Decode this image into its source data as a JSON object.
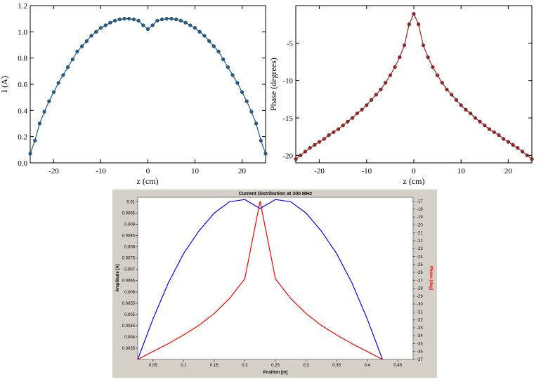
{
  "chart_data": [
    {
      "type": "line",
      "title": "",
      "xlabel": "z (cm)",
      "ylabel": "I (A)",
      "xlim": [
        -25,
        25
      ],
      "ylim": [
        0,
        1.2
      ],
      "x_ticks": [
        "-20",
        "-10",
        "0",
        "10",
        "20"
      ],
      "y_ticks": [
        "0.0",
        "0.2",
        "0.4",
        "0.6",
        "0.8",
        "1.0",
        "1.2"
      ],
      "grid": false,
      "color": "#1f5f94",
      "series": [
        {
          "x": [
            -25,
            -24,
            -23,
            -22,
            -21,
            -20,
            -19,
            -18,
            -17,
            -16,
            -15,
            -14,
            -13,
            -12,
            -11,
            -10,
            -9,
            -8,
            -7,
            -6,
            -5,
            -4,
            -3,
            -2,
            -1,
            0,
            1,
            2,
            3,
            4,
            5,
            6,
            7,
            8,
            9,
            10,
            11,
            12,
            13,
            14,
            15,
            16,
            17,
            18,
            19,
            20,
            21,
            22,
            23,
            24,
            25
          ],
          "values": [
            0.07,
            0.17,
            0.3,
            0.39,
            0.47,
            0.54,
            0.61,
            0.67,
            0.73,
            0.79,
            0.85,
            0.89,
            0.93,
            0.97,
            1.0,
            1.03,
            1.05,
            1.07,
            1.085,
            1.095,
            1.1,
            1.1,
            1.095,
            1.085,
            1.05,
            1.02,
            1.05,
            1.085,
            1.095,
            1.1,
            1.1,
            1.095,
            1.085,
            1.07,
            1.05,
            1.03,
            1.0,
            0.97,
            0.93,
            0.89,
            0.85,
            0.79,
            0.73,
            0.67,
            0.61,
            0.54,
            0.47,
            0.39,
            0.3,
            0.17,
            0.07
          ]
        }
      ]
    },
    {
      "type": "line",
      "title": "",
      "xlabel": "z (cm)",
      "ylabel": "Phase (degrees)",
      "xlim": [
        -25,
        25
      ],
      "ylim": [
        -21,
        0
      ],
      "x_ticks": [
        "-20",
        "-10",
        "0",
        "10",
        "20"
      ],
      "y_ticks": [
        "-20",
        "-15",
        "-10",
        "-5"
      ],
      "grid": false,
      "color": "#a02222",
      "series": [
        {
          "x": [
            -25,
            -24,
            -23,
            -22,
            -21,
            -20,
            -19,
            -18,
            -17,
            -16,
            -15,
            -14,
            -13,
            -12,
            -11,
            -10,
            -9,
            -8,
            -7,
            -6,
            -5,
            -4,
            -3,
            -2,
            -1,
            0,
            1,
            2,
            3,
            4,
            5,
            6,
            7,
            8,
            9,
            10,
            11,
            12,
            13,
            14,
            15,
            16,
            17,
            18,
            19,
            20,
            21,
            22,
            23,
            24,
            25
          ],
          "values": [
            -20.5,
            -20.0,
            -19.5,
            -19.0,
            -18.6,
            -18.2,
            -17.8,
            -17.3,
            -16.9,
            -16.5,
            -16.0,
            -15.5,
            -15.0,
            -14.4,
            -13.9,
            -13.3,
            -12.6,
            -11.9,
            -11.2,
            -10.3,
            -9.3,
            -8.2,
            -6.9,
            -5.3,
            -2.5,
            -1.1,
            -2.5,
            -5.3,
            -6.9,
            -8.2,
            -9.3,
            -10.3,
            -11.2,
            -11.9,
            -12.6,
            -13.3,
            -13.9,
            -14.4,
            -15.0,
            -15.5,
            -16.0,
            -16.5,
            -16.9,
            -17.3,
            -17.8,
            -18.2,
            -18.6,
            -19.0,
            -19.5,
            -20.0,
            -20.5
          ]
        }
      ]
    },
    {
      "type": "line",
      "title": "Current Distribution at 300 MHz",
      "xlabel": "Position [m]",
      "ylabel": "Amplitude [A]",
      "y2label": "Phase [deg]",
      "xlim": [
        0.025,
        0.475
      ],
      "ylim": [
        0.003,
        0.0102
      ],
      "y2lim": [
        -37,
        -16.5
      ],
      "x_ticks": [
        "0.05",
        "0.1",
        "0.15",
        "0.2",
        "0.25",
        "0.3",
        "0.35",
        "0.4",
        "0.45"
      ],
      "y_ticks": [
        "0.0035",
        "0.004",
        "0.0045",
        "0.005",
        "0.0055",
        "0.006",
        "0.0065",
        "0.007",
        "0.0075",
        "0.008",
        "0.0085",
        "0.009",
        "0.0095",
        "0.01"
      ],
      "y2_ticks": [
        "-37",
        "-36",
        "-35",
        "-34",
        "-33",
        "-32",
        "-31",
        "-30",
        "-29",
        "-28",
        "-27",
        "-26",
        "-25",
        "-24",
        "-23",
        "-22",
        "-21",
        "-20",
        "-19",
        "-18",
        "-17"
      ],
      "grid": false,
      "series": [
        {
          "name": "Amplitude",
          "axis": "left",
          "color": "#0000ff",
          "x": [
            0.025,
            0.05,
            0.075,
            0.1,
            0.125,
            0.15,
            0.175,
            0.2,
            0.225,
            0.25,
            0.275,
            0.3,
            0.325,
            0.35,
            0.375,
            0.4,
            0.425,
            0.45,
            0.475
          ],
          "values": [
            0.003,
            0.0048,
            0.0064,
            0.0077,
            0.0087,
            0.0095,
            0.01,
            0.0101,
            0.0097,
            0.0101,
            0.01,
            0.0095,
            0.0087,
            0.0077,
            0.0064,
            0.0048,
            0.003,
            0.003,
            0.003
          ]
        },
        {
          "name": "Phase",
          "axis": "right",
          "color": "#ff0000",
          "x": [
            0.025,
            0.05,
            0.075,
            0.1,
            0.125,
            0.15,
            0.175,
            0.2,
            0.225,
            0.25,
            0.275,
            0.3,
            0.325,
            0.35,
            0.375,
            0.4,
            0.425,
            0.45,
            0.475
          ],
          "values": [
            -37,
            -36,
            -35,
            -33.9,
            -32.7,
            -31.2,
            -29.3,
            -26.8,
            -17,
            -26.8,
            -29.3,
            -31.2,
            -32.7,
            -33.9,
            -35,
            -36,
            -37,
            -37,
            -37
          ]
        }
      ]
    }
  ]
}
